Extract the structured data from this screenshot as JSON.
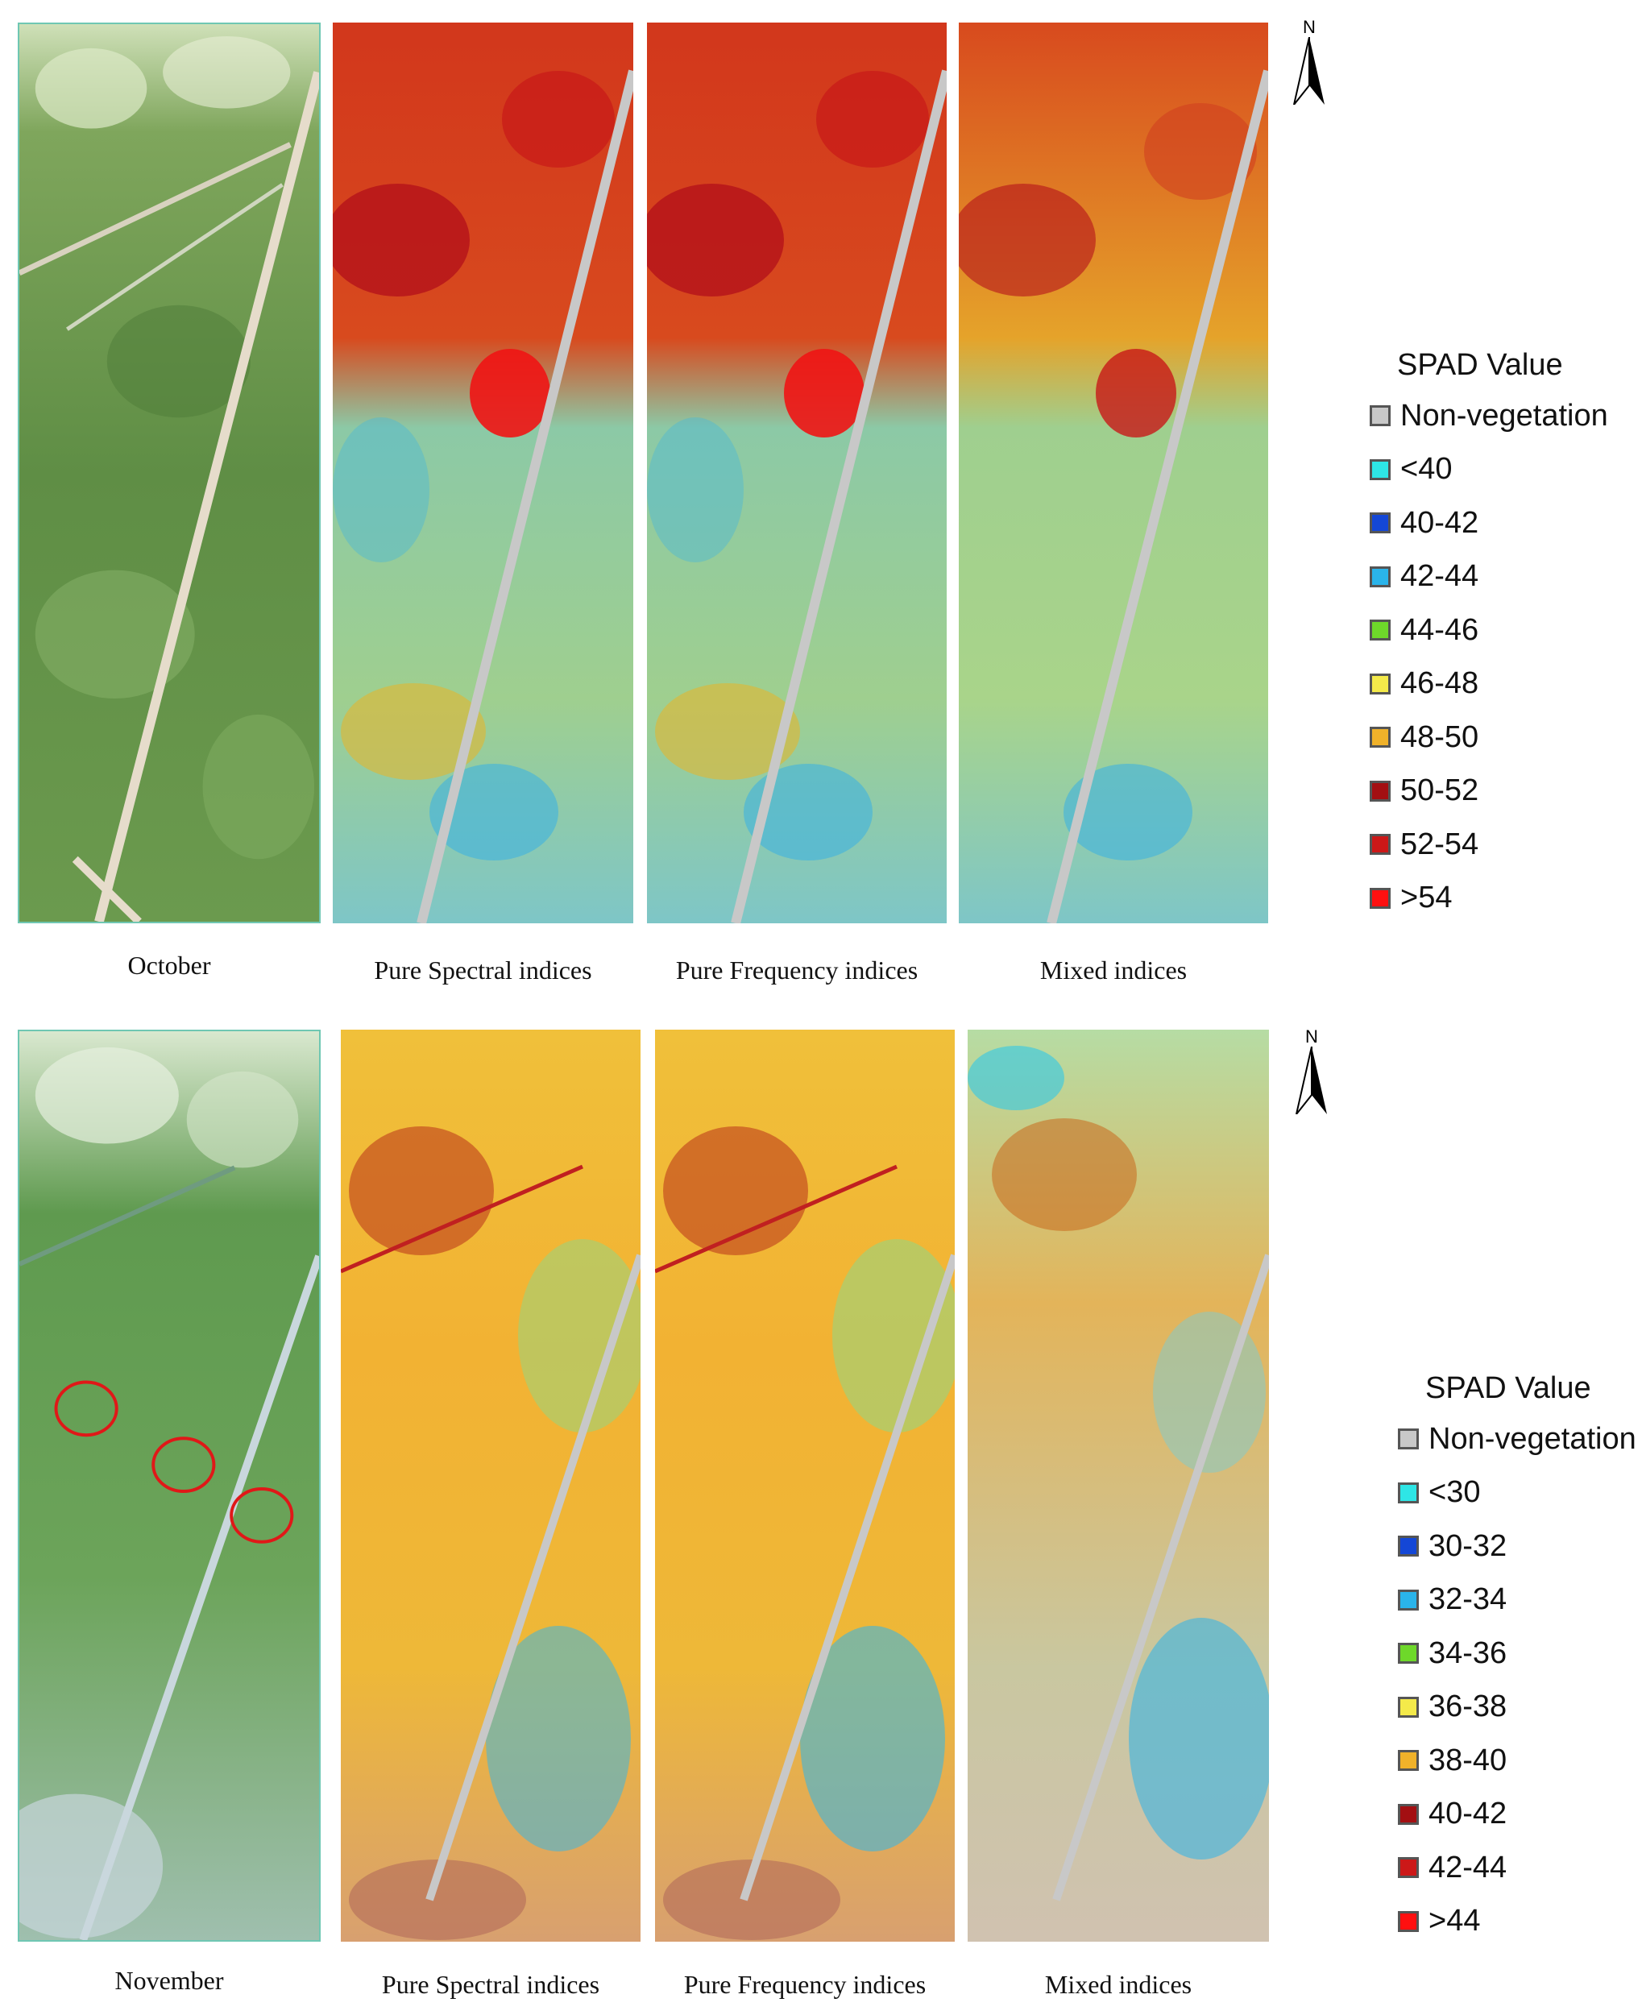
{
  "rows": [
    {
      "captions": [
        "October",
        "Pure Spectral indices",
        "Pure Frequency indices",
        "Mixed indices"
      ],
      "legend": {
        "title": "SPAD Value",
        "items": [
          {
            "label": "Non-vegetation",
            "color": "#c8c8c8"
          },
          {
            "label": "<40",
            "color": "#2ee6e6"
          },
          {
            "label": "40-42",
            "color": "#1447d6"
          },
          {
            "label": "42-44",
            "color": "#2ab4ea"
          },
          {
            "label": "44-46",
            "color": "#6ed82a"
          },
          {
            "label": "46-48",
            "color": "#f4ea4a"
          },
          {
            "label": "48-50",
            "color": "#f0b22a"
          },
          {
            "label": "50-52",
            "color": "#a30f12"
          },
          {
            "label": "52-54",
            "color": "#cc1818"
          },
          {
            "label": ">54",
            "color": "#ff1010"
          }
        ]
      }
    },
    {
      "captions": [
        "November",
        "Pure Spectral indices",
        "Pure Frequency indices",
        "Mixed indices"
      ],
      "legend": {
        "title": "SPAD Value",
        "items": [
          {
            "label": "Non-vegetation",
            "color": "#c8c8c8"
          },
          {
            "label": "<30",
            "color": "#2ee6e6"
          },
          {
            "label": "30-32",
            "color": "#1447d6"
          },
          {
            "label": "32-34",
            "color": "#2ab4ea"
          },
          {
            "label": "34-36",
            "color": "#6ed82a"
          },
          {
            "label": "36-38",
            "color": "#f4ea4a"
          },
          {
            "label": "38-40",
            "color": "#f0b22a"
          },
          {
            "label": "40-42",
            "color": "#a30f12"
          },
          {
            "label": "42-44",
            "color": "#cc1818"
          },
          {
            "label": ">44",
            "color": "#ff1010"
          }
        ]
      }
    }
  ],
  "north_arrow_label": "N"
}
